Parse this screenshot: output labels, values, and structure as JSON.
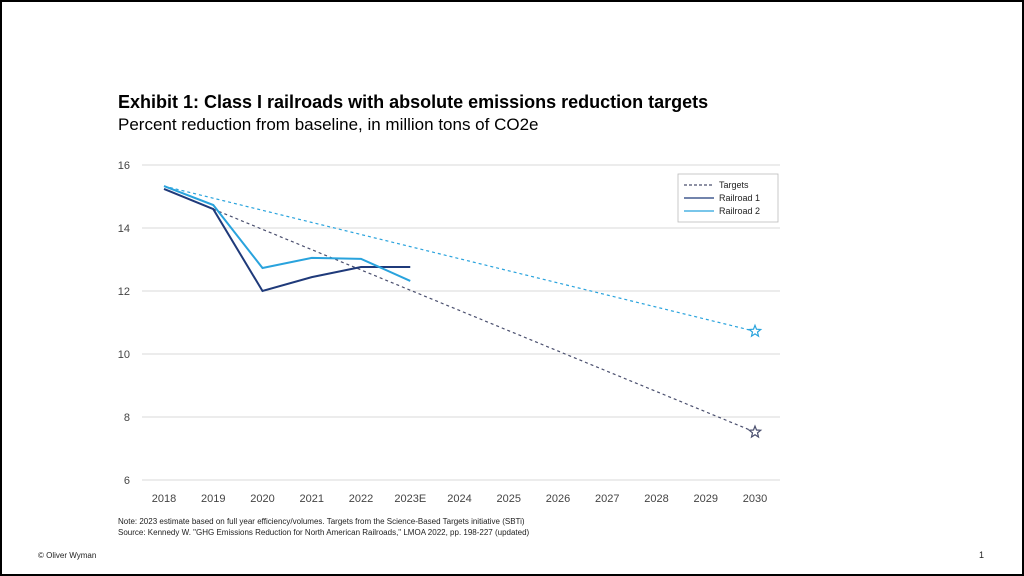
{
  "chart_data": {
    "type": "line",
    "title": "Exhibit 1: Class I railroads with absolute emissions reduction targets",
    "subtitle": "Percent reduction from baseline, in million tons of CO2e",
    "categories": [
      "2018",
      "2019",
      "2020",
      "2021",
      "2022",
      "2023E",
      "2024",
      "2025",
      "2026",
      "2027",
      "2028",
      "2029",
      "2030"
    ],
    "ylim": [
      6,
      16
    ],
    "yticks": [
      "6",
      "8",
      "10",
      "12",
      "14",
      "16"
    ],
    "grid": true,
    "legend_position": "top-right",
    "legend": [
      "Targets",
      "Railroad 1",
      "Railroad 2"
    ],
    "series": [
      {
        "name": "Railroad 1",
        "color": "#1f3a7a",
        "values": [
          15.24,
          14.6,
          12.0,
          12.44,
          12.76,
          12.76,
          null,
          null,
          null,
          null,
          null,
          null,
          null
        ]
      },
      {
        "name": "Railroad 2",
        "color": "#29a3dd",
        "values": [
          15.33,
          14.73,
          12.73,
          13.05,
          13.02,
          12.32,
          null,
          null,
          null,
          null,
          null,
          null,
          null
        ]
      }
    ],
    "targets": [
      {
        "name": "Railroad 1 target",
        "color": "#4a4f6e",
        "from": [
          "2019",
          14.6
        ],
        "to": [
          "2030",
          7.52
        ]
      },
      {
        "name": "Railroad 2 target",
        "color": "#29a3dd",
        "from": [
          "2018",
          15.33
        ],
        "to": [
          "2030",
          10.72
        ]
      }
    ]
  },
  "notes": {
    "note": "Note: 2023 estimate based on full year efficiency/volumes. Targets from the Science-Based Targets initiative (SBTi)",
    "source": "Source: Kennedy W. \"GHG Emissions Reduction for North American Railroads,\" LMOA 2022, pp. 198-227 (updated)"
  },
  "footer": {
    "copyright": "© Oliver Wyman",
    "page": "1"
  }
}
